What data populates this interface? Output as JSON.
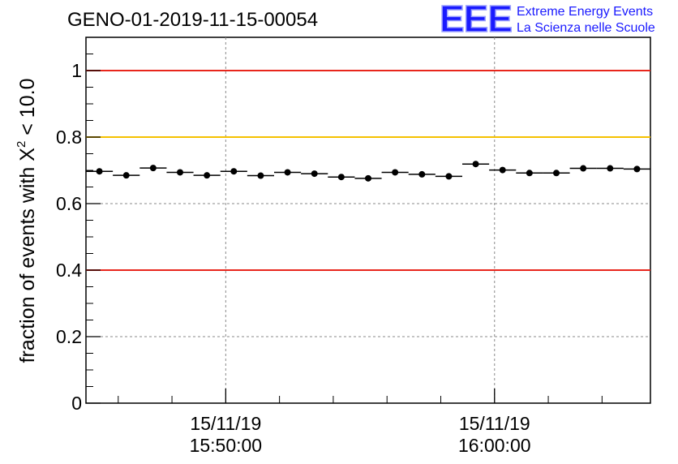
{
  "chart_data": {
    "type": "scatter",
    "title": "GENO-01-2019-11-15-00054",
    "ylabel": "fraction of events with",
    "ylabel_chi": "X",
    "ylabel_sup": "2",
    "ylabel_rest": "< 10.0",
    "ylim": [
      0,
      1.1
    ],
    "yticks": [
      {
        "value": 0,
        "label": "0"
      },
      {
        "value": 0.2,
        "label": "0.2"
      },
      {
        "value": 0.4,
        "label": "0.4"
      },
      {
        "value": 0.6,
        "label": "0.6"
      },
      {
        "value": 0.8,
        "label": "0.8"
      },
      {
        "value": 1,
        "label": "1"
      }
    ],
    "xlim_minutes": [
      -5.2,
      15.8
    ],
    "xticks": [
      {
        "minute": 0,
        "date": "15/11/19",
        "time": "15:50:00"
      },
      {
        "minute": 10,
        "date": "15/11/19",
        "time": "16:00:00"
      }
    ],
    "bin_width_minutes": 1,
    "series": [
      {
        "name": "fraction",
        "x_minutes": [
          -4.7,
          -3.7,
          -2.7,
          -1.7,
          -0.7,
          0.3,
          1.3,
          2.3,
          3.3,
          4.3,
          5.3,
          6.3,
          7.3,
          8.3,
          9.3,
          10.3,
          11.3,
          12.3,
          13.3,
          14.3,
          15.3
        ],
        "values": [
          0.697,
          0.685,
          0.707,
          0.694,
          0.685,
          0.697,
          0.684,
          0.694,
          0.69,
          0.68,
          0.676,
          0.694,
          0.688,
          0.682,
          0.719,
          0.701,
          0.692,
          0.692,
          0.706,
          0.706,
          0.704
        ]
      }
    ],
    "reference_lines": [
      {
        "value": 1.0,
        "color": "#e8261c"
      },
      {
        "value": 0.8,
        "color": "#f5c100"
      },
      {
        "value": 0.4,
        "color": "#e8261c"
      }
    ],
    "grid": true
  },
  "logo": {
    "mark": "EEE",
    "line1": "Extreme Energy Events",
    "line2": "La Scienza nelle Scuole",
    "color": "#1a1aff"
  }
}
